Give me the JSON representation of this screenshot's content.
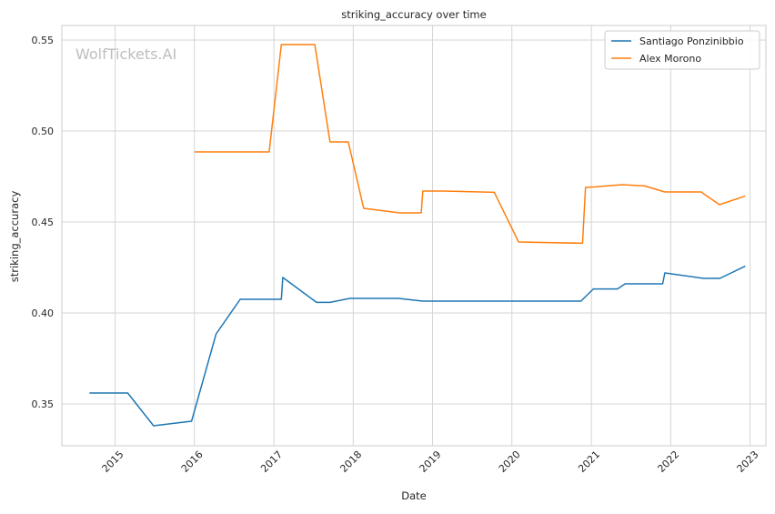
{
  "chart_data": {
    "type": "line",
    "title": "striking_accuracy over time",
    "xlabel": "Date",
    "ylabel": "striking_accuracy",
    "watermark": "WolfTickets.AI",
    "grid": true,
    "legend_position": "top-right",
    "xlim": [
      "2014-05-01",
      "2023-03-15"
    ],
    "ylim": [
      0.327,
      0.558
    ],
    "x_ticks": [
      {
        "label": "2015",
        "date": "2015-01-01"
      },
      {
        "label": "2016",
        "date": "2016-01-01"
      },
      {
        "label": "2017",
        "date": "2017-01-01"
      },
      {
        "label": "2018",
        "date": "2018-01-01"
      },
      {
        "label": "2019",
        "date": "2019-01-01"
      },
      {
        "label": "2020",
        "date": "2020-01-01"
      },
      {
        "label": "2021",
        "date": "2021-01-01"
      },
      {
        "label": "2022",
        "date": "2022-01-01"
      },
      {
        "label": "2023",
        "date": "2023-01-01"
      }
    ],
    "y_ticks": [
      {
        "label": "0.35",
        "value": 0.35
      },
      {
        "label": "0.40",
        "value": 0.4
      },
      {
        "label": "0.45",
        "value": 0.45
      },
      {
        "label": "0.50",
        "value": 0.5
      },
      {
        "label": "0.55",
        "value": 0.55
      }
    ],
    "series": [
      {
        "name": "Santiago Ponzinibbio",
        "color": "#1f77b4",
        "points": [
          [
            "2014-09-05",
            0.356
          ],
          [
            "2015-02-28",
            0.356
          ],
          [
            "2015-06-27",
            0.338
          ],
          [
            "2015-12-19",
            0.3405
          ],
          [
            "2016-04-10",
            0.3885
          ],
          [
            "2016-07-30",
            0.4075
          ],
          [
            "2017-02-04",
            0.4075
          ],
          [
            "2017-02-11",
            0.4195
          ],
          [
            "2017-07-16",
            0.4058
          ],
          [
            "2017-09-16",
            0.4058
          ],
          [
            "2017-12-16",
            0.408
          ],
          [
            "2018-07-28",
            0.408
          ],
          [
            "2018-11-17",
            0.4065
          ],
          [
            "2020-11-14",
            0.4065
          ],
          [
            "2021-01-10",
            0.4132
          ],
          [
            "2021-05-01",
            0.4132
          ],
          [
            "2021-06-05",
            0.416
          ],
          [
            "2021-11-25",
            0.416
          ],
          [
            "2021-12-05",
            0.422
          ],
          [
            "2022-06-01",
            0.419
          ],
          [
            "2022-08-15",
            0.419
          ],
          [
            "2022-12-10",
            0.4257
          ]
        ]
      },
      {
        "name": "Alex Morono",
        "color": "#ff7f0e",
        "points": [
          [
            "2016-01-02",
            0.4885
          ],
          [
            "2016-12-10",
            0.4885
          ],
          [
            "2017-02-04",
            0.5475
          ],
          [
            "2017-07-08",
            0.5475
          ],
          [
            "2017-09-16",
            0.494
          ],
          [
            "2017-12-09",
            0.494
          ],
          [
            "2018-02-18",
            0.4575
          ],
          [
            "2018-08-04",
            0.455
          ],
          [
            "2018-11-10",
            0.455
          ],
          [
            "2018-11-17",
            0.467
          ],
          [
            "2019-02-17",
            0.467
          ],
          [
            "2019-10-12",
            0.4663
          ],
          [
            "2020-02-01",
            0.439
          ],
          [
            "2020-11-21",
            0.4383
          ],
          [
            "2020-12-05",
            0.469
          ],
          [
            "2021-01-20",
            0.4693
          ],
          [
            "2021-05-22",
            0.4705
          ],
          [
            "2021-09-04",
            0.4698
          ],
          [
            "2021-12-04",
            0.4665
          ],
          [
            "2022-05-21",
            0.4665
          ],
          [
            "2022-08-13",
            0.4595
          ],
          [
            "2022-12-10",
            0.4643
          ]
        ]
      }
    ]
  }
}
